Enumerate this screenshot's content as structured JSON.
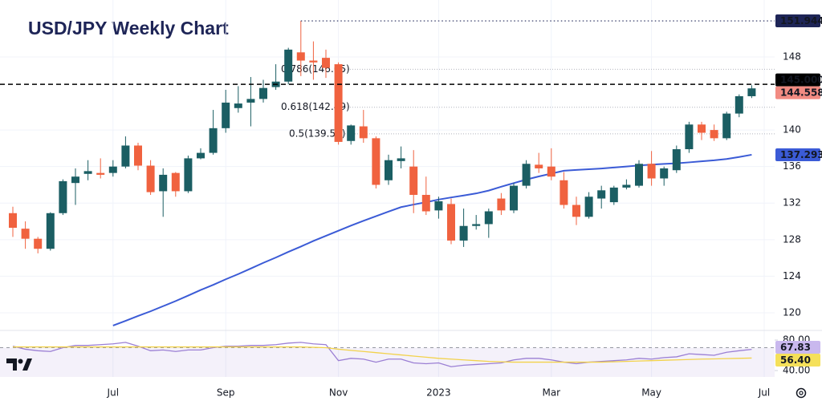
{
  "chart_data": {
    "type": "candlestick",
    "title": "USD/JPY Weekly Chart",
    "categories": [
      null,
      null,
      null,
      null,
      null,
      null,
      null,
      null,
      "Jul",
      null,
      null,
      null,
      null,
      null,
      null,
      null,
      null,
      "Sep",
      null,
      null,
      null,
      null,
      null,
      null,
      null,
      null,
      "Nov",
      null,
      null,
      null,
      null,
      null,
      null,
      null,
      "2023",
      null,
      null,
      null,
      null,
      null,
      null,
      null,
      null,
      "Mar",
      null,
      null,
      null,
      null,
      null,
      null,
      null,
      "May",
      null,
      null,
      null,
      null,
      null,
      null,
      null,
      null,
      "Jul"
    ],
    "open": [
      130.9,
      129.2,
      128.1,
      127.0,
      130.9,
      134.2,
      135.2,
      135.3,
      135.3,
      136.0,
      138.3,
      136.1,
      133.3,
      135.3,
      133.3,
      136.9,
      137.5,
      140.2,
      142.4,
      143.0,
      143.4,
      144.7,
      145.3,
      148.5,
      147.6,
      147.9,
      147.2,
      138.8,
      140.4,
      139.1,
      134.5,
      136.6,
      136.0,
      132.9,
      131.2,
      131.9,
      127.9,
      129.5,
      129.7,
      132.5,
      131.2,
      133.9,
      136.2,
      136.0,
      134.5,
      131.8,
      130.5,
      132.5,
      132.1,
      133.7,
      133.9,
      136.3,
      134.7,
      135.6,
      137.9,
      140.6,
      140.0,
      139.1,
      141.8,
      143.7,
      null
    ],
    "high": [
      131.6,
      130.0,
      128.3,
      131.0,
      134.6,
      135.8,
      136.7,
      136.9,
      136.7,
      139.3,
      138.6,
      136.7,
      135.8,
      135.4,
      137.2,
      138.0,
      142.2,
      144.4,
      144.8,
      145.8,
      145.5,
      147.2,
      149.0,
      151.944,
      149.7,
      148.8,
      147.4,
      140.6,
      142.2,
      139.3,
      137.3,
      138.2,
      137.8,
      134.9,
      132.7,
      132.5,
      131.4,
      130.7,
      131.4,
      133.1,
      134.2,
      136.7,
      137.5,
      138.0,
      135.4,
      132.7,
      133.2,
      133.9,
      133.9,
      134.6,
      136.7,
      137.7,
      136.0,
      138.3,
      140.9,
      140.9,
      140.6,
      142.0,
      143.9,
      144.9,
      null
    ],
    "low": [
      128.3,
      127.0,
      126.5,
      126.8,
      130.7,
      131.8,
      134.5,
      134.7,
      134.9,
      135.8,
      135.6,
      132.9,
      130.5,
      132.7,
      133.1,
      136.8,
      137.3,
      139.7,
      141.9,
      140.4,
      143.0,
      144.4,
      145.0,
      145.9,
      145.5,
      145.7,
      138.4,
      138.4,
      138.6,
      133.6,
      134.0,
      135.8,
      130.9,
      130.7,
      130.3,
      127.5,
      127.2,
      129.1,
      128.2,
      130.7,
      130.9,
      133.6,
      135.3,
      134.5,
      131.4,
      129.6,
      130.3,
      131.4,
      131.8,
      133.5,
      133.7,
      133.9,
      133.9,
      135.3,
      137.5,
      138.9,
      138.8,
      138.9,
      141.4,
      143.5,
      null
    ],
    "close": [
      129.3,
      128.1,
      127.0,
      130.9,
      134.4,
      134.9,
      135.5,
      135.1,
      136.0,
      138.3,
      136.1,
      133.2,
      135.1,
      133.3,
      136.9,
      137.5,
      140.2,
      143.0,
      142.9,
      143.4,
      144.6,
      145.3,
      148.8,
      147.6,
      147.4,
      146.8,
      138.7,
      140.5,
      139.1,
      134.0,
      136.7,
      136.9,
      132.9,
      131.1,
      132.2,
      127.9,
      129.5,
      129.7,
      131.1,
      131.2,
      133.9,
      136.3,
      135.8,
      134.9,
      131.8,
      130.5,
      132.7,
      133.4,
      133.7,
      134.0,
      136.3,
      134.7,
      135.8,
      137.9,
      140.6,
      139.7,
      139.1,
      141.8,
      143.7,
      144.558,
      null
    ],
    "up_color": "#1b5e63",
    "down_color": "#f0623f",
    "moving_average": {
      "color": "#3b5bd6",
      "values": [
        null,
        null,
        null,
        null,
        null,
        null,
        null,
        null,
        118.6,
        119.11,
        119.65,
        120.16,
        120.72,
        121.28,
        121.88,
        122.49,
        123.05,
        123.66,
        124.23,
        124.84,
        125.46,
        126.04,
        126.66,
        127.24,
        127.86,
        128.42,
        128.98,
        129.54,
        130.06,
        130.57,
        131.07,
        131.56,
        131.84,
        132.1,
        132.39,
        132.62,
        132.83,
        133.06,
        133.37,
        133.79,
        134.19,
        134.58,
        134.92,
        135.23,
        135.54,
        135.63,
        135.71,
        135.79,
        135.9,
        136.0,
        136.12,
        136.21,
        136.29,
        136.36,
        136.46,
        136.57,
        136.68,
        136.83,
        137.05,
        137.293,
        null
      ]
    },
    "ylim": [
      118.24,
      154.23
    ],
    "yticks": [
      120,
      124,
      128,
      132,
      136,
      140,
      148
    ],
    "grid": true,
    "fib_levels": [
      {
        "value": 146.65,
        "label": "0.786(146.65)"
      },
      {
        "value": 142.49,
        "label": "0.618(142.49)"
      },
      {
        "value": 139.58,
        "label": "0.5(139.58)"
      }
    ],
    "price_labels": [
      {
        "value": 151.944,
        "color": "#1e2557",
        "text_color": "#ffffff",
        "line": "dotted"
      },
      {
        "value": 145,
        "label": "145.000",
        "color": "#000000",
        "text_color": "#ffffff",
        "line": "dashed"
      },
      {
        "value": 144.558,
        "color": "#f28b82",
        "text_color": "#ffffff"
      },
      {
        "value": 137.293,
        "color": "#3b5bd6",
        "text_color": "#ffffff"
      }
    ],
    "rsi": {
      "ylim": [
        31.6,
        89.5
      ],
      "yticks": [
        {
          "value": 80,
          "label": "80.00"
        },
        {
          "value": 40,
          "label": "40.00"
        }
      ],
      "band": [
        30,
        70
      ],
      "band_color": "#9575cd",
      "series": [
        {
          "color": "#9b7fd4",
          "values": [
            72,
            68,
            66,
            65,
            70,
            73,
            73,
            74,
            75,
            77,
            72,
            66,
            67,
            65,
            67,
            67,
            70,
            72,
            72,
            73,
            73,
            74,
            76,
            77,
            75,
            74,
            53,
            56,
            55,
            51,
            55,
            55,
            50,
            49,
            50,
            45,
            47,
            48,
            49,
            50,
            54,
            56,
            56,
            54,
            51,
            49,
            51,
            52,
            53,
            54,
            56,
            55,
            57,
            58,
            62,
            61,
            60,
            64,
            66,
            67.83,
            null
          ]
        },
        {
          "color": "#f2d24b",
          "values": [
            71,
            71,
            71,
            71,
            71,
            71,
            71,
            71,
            71,
            71,
            71,
            71,
            71,
            71,
            71,
            71,
            71,
            71,
            71,
            71,
            71,
            71,
            71,
            71,
            70.5,
            70,
            68,
            66.5,
            65,
            63.5,
            62,
            60.5,
            59,
            57.5,
            56,
            55,
            54,
            53,
            52,
            51.5,
            51,
            51,
            51,
            51,
            51,
            51,
            51,
            51,
            51.5,
            52,
            52.5,
            53,
            53.5,
            54,
            54.5,
            55,
            55.3,
            55.7,
            56,
            56.4,
            null
          ]
        }
      ],
      "price_labels": [
        {
          "value": 67.83,
          "color": "#c9b8ee",
          "text_color": "#131722"
        },
        {
          "value": 56.4,
          "label": "56.40",
          "color": "#f5e05a",
          "text_color": "#131722"
        }
      ]
    }
  }
}
